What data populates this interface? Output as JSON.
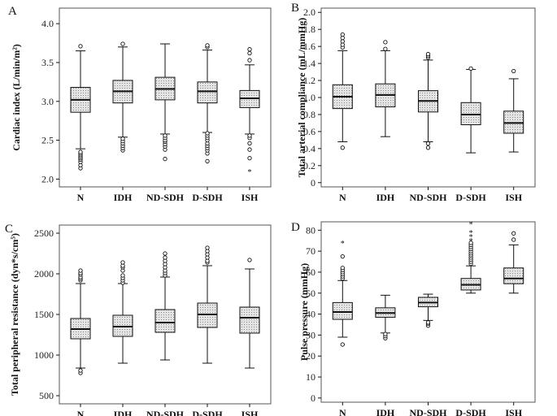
{
  "figure": {
    "colors": {
      "box_fill": "#d9d9d9",
      "frame": "#555555",
      "ink": "#111111"
    }
  },
  "chart_data": [
    {
      "panel": "A",
      "type": "box",
      "ylabel": "Cardiac index (L/min/m²)",
      "ylim": [
        1.9,
        4.2
      ],
      "yticks": [
        "2.0",
        "2.5",
        "3.0",
        "3.5",
        "4.0"
      ],
      "categories": [
        "N",
        "IDH",
        "ND-SDH",
        "D-SDH",
        "ISH"
      ],
      "boxes": [
        {
          "category": "N",
          "whisker_low": 2.39,
          "q1": 2.86,
          "median": 3.02,
          "q3": 3.18,
          "whisker_high": 3.65,
          "outliers": [
            2.14,
            2.18,
            2.22,
            2.25,
            2.27,
            2.29,
            2.31,
            2.33,
            2.35,
            3.71
          ],
          "extremes": []
        },
        {
          "category": "IDH",
          "whisker_low": 2.54,
          "q1": 2.98,
          "median": 3.13,
          "q3": 3.27,
          "whisker_high": 3.7,
          "outliers": [
            2.37,
            2.4,
            2.43,
            2.46,
            2.49,
            2.52,
            3.74
          ],
          "extremes": []
        },
        {
          "category": "ND-SDH",
          "whisker_low": 2.58,
          "q1": 3.02,
          "median": 3.16,
          "q3": 3.31,
          "whisker_high": 3.74,
          "outliers": [
            2.26,
            2.38,
            2.42,
            2.45,
            2.48,
            2.5,
            2.53,
            2.56
          ],
          "extremes": []
        },
        {
          "category": "D-SDH",
          "whisker_low": 2.6,
          "q1": 2.98,
          "median": 3.13,
          "q3": 3.25,
          "whisker_high": 3.66,
          "outliers": [
            2.23,
            2.33,
            2.37,
            2.4,
            2.43,
            2.46,
            2.5,
            2.53,
            2.56,
            2.59,
            3.7,
            3.72
          ],
          "extremes": []
        },
        {
          "category": "ISH",
          "whisker_low": 2.58,
          "q1": 2.92,
          "median": 3.04,
          "q3": 3.14,
          "whisker_high": 3.47,
          "outliers": [
            2.27,
            2.38,
            2.46,
            2.53,
            2.56,
            3.53,
            3.62,
            3.67
          ],
          "extremes": [
            2.1
          ]
        }
      ]
    },
    {
      "panel": "B",
      "type": "box",
      "ylabel": "Total arterial compliance (mL/mmHg)",
      "ylim": [
        -0.05,
        2.05
      ],
      "yticks": [
        "0",
        "0.2",
        "0.4",
        "0.6",
        "0.8",
        "1.0",
        "1.2",
        "1.4",
        "1.6",
        "1.8",
        "2.0"
      ],
      "categories": [
        "N",
        "IDH",
        "ND-SDH",
        "D-SDH",
        "ISH"
      ],
      "boxes": [
        {
          "category": "N",
          "whisker_low": 0.48,
          "q1": 0.87,
          "median": 1.01,
          "q3": 1.15,
          "whisker_high": 1.55,
          "outliers": [
            0.41,
            1.59,
            1.62,
            1.66,
            1.7,
            1.74
          ],
          "extremes": []
        },
        {
          "category": "IDH",
          "whisker_low": 0.54,
          "q1": 0.89,
          "median": 1.03,
          "q3": 1.16,
          "whisker_high": 1.55,
          "outliers": [
            1.57,
            1.65
          ],
          "extremes": []
        },
        {
          "category": "ND-SDH",
          "whisker_low": 0.48,
          "q1": 0.83,
          "median": 0.96,
          "q3": 1.08,
          "whisker_high": 1.44,
          "outliers": [
            0.41,
            0.46,
            1.47,
            1.49,
            1.51
          ],
          "extremes": []
        },
        {
          "category": "D-SDH",
          "whisker_low": 0.35,
          "q1": 0.68,
          "median": 0.8,
          "q3": 0.94,
          "whisker_high": 1.33,
          "outliers": [
            1.34
          ],
          "extremes": []
        },
        {
          "category": "ISH",
          "whisker_low": 0.36,
          "q1": 0.58,
          "median": 0.7,
          "q3": 0.84,
          "whisker_high": 1.22,
          "outliers": [
            1.31
          ],
          "extremes": []
        }
      ]
    },
    {
      "panel": "C",
      "type": "box",
      "ylabel": "Total peripheral resistance (dyn*s/cm⁵)",
      "ylim": [
        400,
        2600
      ],
      "yticks": [
        "500",
        "1000",
        "1500",
        "2000",
        "2500"
      ],
      "categories": [
        "N",
        "IDH",
        "ND-SDH",
        "D-SDH",
        "ISH"
      ],
      "boxes": [
        {
          "category": "N",
          "whisker_low": 840,
          "q1": 1200,
          "median": 1320,
          "q3": 1450,
          "whisker_high": 1880,
          "outliers": [
            780,
            810,
            1920,
            1940,
            1960,
            1990,
            2010,
            2040
          ],
          "extremes": []
        },
        {
          "category": "IDH",
          "whisker_low": 900,
          "q1": 1230,
          "median": 1350,
          "q3": 1490,
          "whisker_high": 1880,
          "outliers": [
            1890,
            1920,
            1950,
            1980,
            2040,
            2080,
            2100,
            2140
          ],
          "extremes": []
        },
        {
          "category": "ND-SDH",
          "whisker_low": 940,
          "q1": 1280,
          "median": 1400,
          "q3": 1560,
          "whisker_high": 1960,
          "outliers": [
            1980,
            2010,
            2040,
            2080,
            2120,
            2160,
            2200,
            2250
          ],
          "extremes": []
        },
        {
          "category": "D-SDH",
          "whisker_low": 900,
          "q1": 1340,
          "median": 1500,
          "q3": 1640,
          "whisker_high": 2100,
          "outliers": [
            2140,
            2160,
            2200,
            2240,
            2280,
            2320
          ],
          "extremes": []
        },
        {
          "category": "ISH",
          "whisker_low": 840,
          "q1": 1270,
          "median": 1460,
          "q3": 1590,
          "whisker_high": 2060,
          "outliers": [
            2170
          ],
          "extremes": []
        }
      ]
    },
    {
      "panel": "D",
      "type": "box",
      "ylabel": "Pulse pressure (mmHg)",
      "ylim": [
        -2,
        84
      ],
      "yticks": [
        "0",
        "10",
        "20",
        "30",
        "40",
        "50",
        "60",
        "70",
        "80"
      ],
      "categories": [
        "N",
        "IDH",
        "ND-SDH",
        "D-SDH",
        "ISH"
      ],
      "boxes": [
        {
          "category": "N",
          "whisker_low": 29,
          "q1": 37.5,
          "median": 41,
          "q3": 45.5,
          "whisker_high": 56,
          "outliers": [
            25.5,
            57,
            58,
            59,
            60,
            61,
            62,
            67.5
          ],
          "extremes": [
            74
          ]
        },
        {
          "category": "IDH",
          "whisker_low": 31,
          "q1": 38.5,
          "median": 40.5,
          "q3": 43,
          "whisker_high": 49,
          "outliers": [
            28.5,
            29.5,
            30.5
          ],
          "extremes": []
        },
        {
          "category": "ND-SDH",
          "whisker_low": 37,
          "q1": 43.5,
          "median": 45.5,
          "q3": 48,
          "whisker_high": 49.5,
          "outliers": [
            34.5,
            35.5,
            36
          ],
          "extremes": []
        },
        {
          "category": "D-SDH",
          "whisker_low": 50,
          "q1": 51.5,
          "median": 54,
          "q3": 57,
          "whisker_high": 63,
          "outliers": [
            64,
            65,
            66,
            67,
            68,
            69,
            70,
            71,
            72,
            73,
            74
          ],
          "extremes": [
            75,
            77,
            79,
            83
          ]
        },
        {
          "category": "ISH",
          "whisker_low": 50,
          "q1": 54.5,
          "median": 57,
          "q3": 62,
          "whisker_high": 73,
          "outliers": [
            75.5,
            78.5
          ],
          "extremes": []
        }
      ]
    }
  ]
}
